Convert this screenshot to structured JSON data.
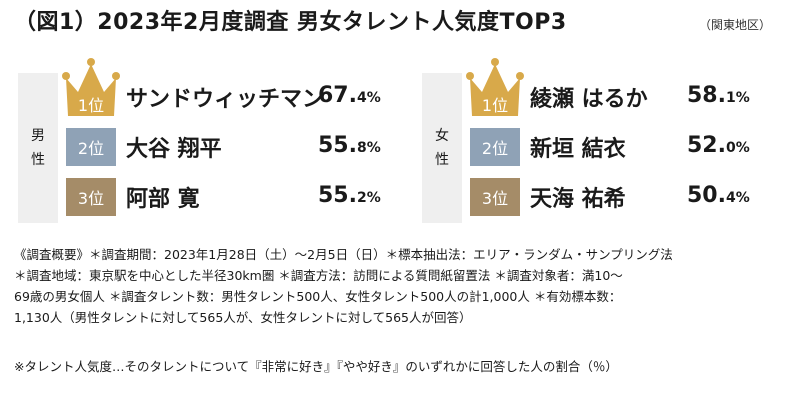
{
  "title": "（図1）2023年2月度調査 男女タレント人気度TOP3",
  "region": "（関東地区）",
  "chart_data": [
    {
      "type": "table",
      "group_label": [
        "男",
        "性"
      ],
      "rows": [
        {
          "rank": "1位",
          "name": "サンドウィッチマン",
          "value_int": "67.",
          "value_dec": "4%",
          "value": 67.4
        },
        {
          "rank": "2位",
          "name": "大谷 翔平",
          "value_int": "55.",
          "value_dec": "8%",
          "value": 55.8
        },
        {
          "rank": "3位",
          "name": "阿部 寛",
          "value_int": "55.",
          "value_dec": "2%",
          "value": 55.2
        }
      ]
    },
    {
      "type": "table",
      "group_label": [
        "女",
        "性"
      ],
      "rows": [
        {
          "rank": "1位",
          "name": "綾瀬 はるか",
          "value_int": "58.",
          "value_dec": "1%",
          "value": 58.1
        },
        {
          "rank": "2位",
          "name": "新垣 結衣",
          "value_int": "52.",
          "value_dec": "0%",
          "value": 52.0
        },
        {
          "rank": "3位",
          "name": "天海 祐希",
          "value_int": "50.",
          "value_dec": "4%",
          "value": 50.4
        }
      ]
    }
  ],
  "notes": [
    "《調査概要》＊調査期間：2023年1月28日（土）〜2月5日（日）＊標本抽出法：エリア・ランダム・サンプリング法",
    "＊調査地域：東京駅を中心とした半径30km圏 ＊調査方法：訪問による質問紙留置法 ＊調査対象者：満10〜",
    "69歳の男女個人 ＊調査タレント数：男性タレント500人、女性タレント500人の計1,000人 ＊有効標本数：",
    "1,130人（男性タレントに対して565人が、女性タレントに対して565人が回答）"
  ],
  "footnote": "※タレント人気度…そのタレントについて『非常に好き』『やや好き』のいずれかに回答した人の割合（％）",
  "colors": {
    "gold": "#d8a94a",
    "silver": "#8fa2b6",
    "bronze": "#a58c68",
    "panel_bg": "#efefef"
  }
}
